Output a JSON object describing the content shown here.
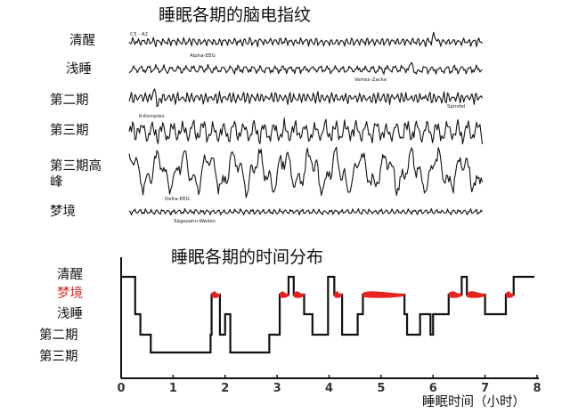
{
  "eeg": {
    "title": "睡眠各期的脑电指纹",
    "electrode": "C3 - A2",
    "rows": [
      {
        "label": "清醒",
        "annotation": "Alpha-EEG",
        "amp": 3,
        "freq": 1.1,
        "spikes": [
          [
            345,
            10
          ]
        ]
      },
      {
        "label": "浅睡",
        "annotation": "Vertex-Zacke",
        "amp": 3,
        "freq": 0.75,
        "spikes": [
          [
            320,
            9
          ],
          [
            325,
            -7
          ]
        ]
      },
      {
        "label": "第二期",
        "annotation": "Spindel",
        "amp": 4,
        "freq": 1.2,
        "spikes": [
          [
            28,
            10
          ],
          [
            33,
            -9
          ]
        ]
      },
      {
        "label": "第三期",
        "annotation": "K-Komplex",
        "amp": 8,
        "freq": 0.55,
        "spikes": [
          [
            10,
            9
          ]
        ]
      },
      {
        "label": "第三期高峰",
        "annotation": "Delta-EEG",
        "amp": 15,
        "freq": 0.22,
        "spikes": []
      },
      {
        "label": "梦境",
        "annotation": "Sägezahn-Wellen",
        "amp": 2,
        "freq": 1.0,
        "spikes": []
      }
    ]
  },
  "hypnogram": {
    "title": "睡眠各期的时间分布",
    "stage_labels": [
      "清醒",
      "梦境",
      "浅睡",
      "第二期",
      "第三期"
    ],
    "dream_label_color": "#d42a2a",
    "dream_band_color": "#e8231f",
    "xlabel": "睡眠时间（小时）",
    "xticks": [
      "0",
      "1",
      "2",
      "3",
      "4",
      "5",
      "6",
      "7",
      "8"
    ],
    "xlim": [
      0,
      8
    ],
    "level_order": [
      "清醒",
      "梦境",
      "浅睡",
      "第二期",
      "第三期"
    ],
    "sequence": [
      {
        "t": 0.0,
        "stage": "清醒"
      },
      {
        "t": 0.27,
        "stage": "浅睡"
      },
      {
        "t": 0.37,
        "stage": "第二期"
      },
      {
        "t": 0.57,
        "stage": "第三期"
      },
      {
        "t": 1.72,
        "stage": "第二期"
      },
      {
        "t": 1.74,
        "stage": "梦境"
      },
      {
        "t": 1.9,
        "stage": "第二期"
      },
      {
        "t": 2.0,
        "stage": "浅睡"
      },
      {
        "t": 2.1,
        "stage": "第三期"
      },
      {
        "t": 2.85,
        "stage": "第二期"
      },
      {
        "t": 3.05,
        "stage": "梦境"
      },
      {
        "t": 3.22,
        "stage": "清醒"
      },
      {
        "t": 3.32,
        "stage": "梦境"
      },
      {
        "t": 3.52,
        "stage": "浅睡"
      },
      {
        "t": 3.68,
        "stage": "第二期"
      },
      {
        "t": 3.98,
        "stage": "清醒"
      },
      {
        "t": 4.1,
        "stage": "梦境"
      },
      {
        "t": 4.25,
        "stage": "第二期"
      },
      {
        "t": 4.55,
        "stage": "浅睡"
      },
      {
        "t": 4.65,
        "stage": "梦境"
      },
      {
        "t": 5.45,
        "stage": "浅睡"
      },
      {
        "t": 5.5,
        "stage": "第二期"
      },
      {
        "t": 5.75,
        "stage": "浅睡"
      },
      {
        "t": 5.95,
        "stage": "第二期"
      },
      {
        "t": 6.0,
        "stage": "浅睡"
      },
      {
        "t": 6.3,
        "stage": "梦境"
      },
      {
        "t": 6.55,
        "stage": "清醒"
      },
      {
        "t": 6.65,
        "stage": "梦境"
      },
      {
        "t": 7.0,
        "stage": "浅睡"
      },
      {
        "t": 7.4,
        "stage": "梦境"
      },
      {
        "t": 7.55,
        "stage": "清醒"
      },
      {
        "t": 7.95,
        "stage": "清醒"
      }
    ]
  }
}
